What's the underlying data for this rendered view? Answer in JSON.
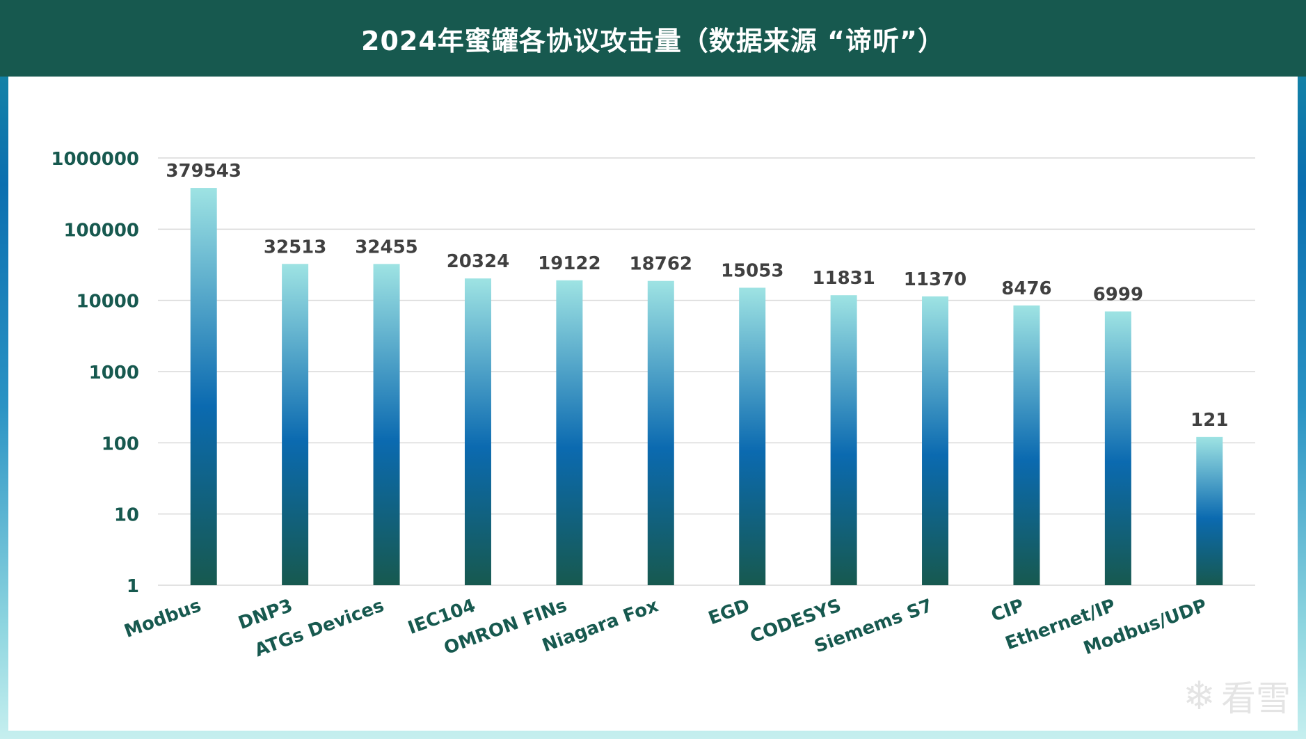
{
  "header": {
    "title": "2024年蜜罐各协议攻击量（数据来源 “谛听”）"
  },
  "watermark": {
    "icon": "snowflake-icon",
    "text": "看雪"
  },
  "colors": {
    "header_bg": "#17594f",
    "axis_text": "#17594f",
    "value_text": "#404040",
    "bar_top": "#9ee3e3",
    "bar_mid": "#0b6ab0",
    "bar_bottom": "#17594f",
    "grid": "#d9d9d9"
  },
  "chart_data": {
    "type": "bar",
    "title": "2024年蜜罐各协议攻击量（数据来源 “谛听”）",
    "xlabel": "",
    "ylabel": "",
    "yscale": "log",
    "ylim": [
      1,
      1000000
    ],
    "yticks": [
      1,
      10,
      100,
      1000,
      10000,
      100000,
      1000000
    ],
    "ytick_labels": [
      "1",
      "10",
      "100",
      "1000",
      "10000",
      "100000",
      "1000000"
    ],
    "grid": true,
    "legend": "none",
    "categories": [
      "Modbus",
      "DNP3",
      "ATGs Devices",
      "IEC104",
      "OMRON FINs",
      "Niagara Fox",
      "EGD",
      "CODESYS",
      "Siemems S7",
      "CIP",
      "Ethernet/IP",
      "Modbus/UDP"
    ],
    "values": [
      379543,
      32513,
      32455,
      20324,
      19122,
      18762,
      15053,
      11831,
      11370,
      8476,
      6999,
      121
    ],
    "value_labels": [
      "379543",
      "32513",
      "32455",
      "20324",
      "19122",
      "18762",
      "15053",
      "11831",
      "11370",
      "8476",
      "6999",
      "121"
    ]
  }
}
